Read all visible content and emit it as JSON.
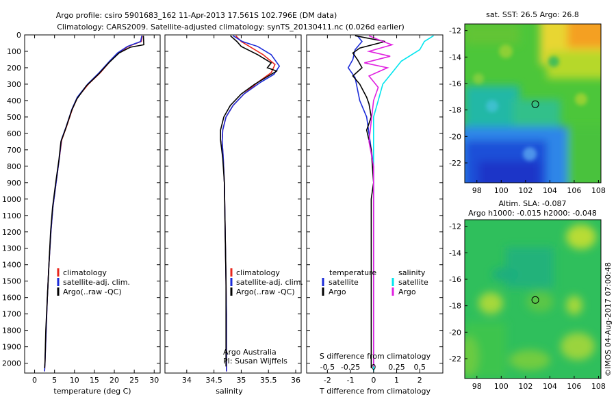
{
  "header": {
    "title_line1": "Argo profile: csiro 5901683_162 11-Apr-2013 17.561S 102.796E (DM data)",
    "title_line2": "Climatology: CARS2009. Satellite-adjusted climatology: synTS_20130411.nc (0.026d earlier)"
  },
  "colors": {
    "climatology": "#e8251b",
    "satellite": "#1b2bd8",
    "argo": "#000000",
    "salinity_satellite": "#00e5ee",
    "salinity_argo": "#e020e0"
  },
  "credit": "©IMOS 04-Aug-2017 07:00:48",
  "chart_data": [
    {
      "type": "line",
      "xlabel": "temperature (deg C)",
      "ylabel": "",
      "xlim": [
        -2.5,
        31.5
      ],
      "ylim": [
        2060,
        0
      ],
      "x_ticks": [
        "0",
        "5",
        "10",
        "15",
        "20",
        "25",
        "30"
      ],
      "y_ticks": [
        "0",
        "100",
        "200",
        "300",
        "400",
        "500",
        "600",
        "700",
        "800",
        "900",
        "1000",
        "1100",
        "1200",
        "1300",
        "1400",
        "1500",
        "1600",
        "1700",
        "1800",
        "1900",
        "2000"
      ],
      "legend": [
        "climatology",
        "satellite-adj. clim.",
        "Argo(..raw -QC)"
      ],
      "series": [
        {
          "name": "climatology",
          "values": [
            [
              27.0,
              5
            ],
            [
              26.8,
              40
            ],
            [
              23.5,
              70
            ],
            [
              21.0,
              110
            ],
            [
              19.0,
              160
            ],
            [
              16.5,
              230
            ],
            [
              13.5,
              300
            ],
            [
              10.8,
              380
            ],
            [
              9.5,
              450
            ],
            [
              8.0,
              560
            ],
            [
              6.8,
              640
            ],
            [
              6.2,
              750
            ],
            [
              5.4,
              900
            ],
            [
              4.6,
              1050
            ],
            [
              4.1,
              1200
            ],
            [
              3.6,
              1400
            ],
            [
              3.2,
              1600
            ],
            [
              2.9,
              1800
            ],
            [
              2.6,
              2000
            ],
            [
              2.5,
              2050
            ]
          ]
        },
        {
          "name": "satellite-adj. clim.",
          "values": [
            [
              26.9,
              5
            ],
            [
              26.6,
              40
            ],
            [
              23.3,
              70
            ],
            [
              20.8,
              110
            ],
            [
              18.8,
              160
            ],
            [
              16.2,
              230
            ],
            [
              13.3,
              300
            ],
            [
              10.7,
              380
            ],
            [
              9.4,
              450
            ],
            [
              7.9,
              560
            ],
            [
              6.7,
              640
            ],
            [
              6.2,
              750
            ],
            [
              5.4,
              900
            ],
            [
              4.6,
              1050
            ],
            [
              4.1,
              1200
            ],
            [
              3.6,
              1400
            ],
            [
              3.2,
              1600
            ],
            [
              2.9,
              1800
            ],
            [
              2.6,
              2000
            ],
            [
              2.5,
              2050
            ]
          ]
        },
        {
          "name": "Argo(..raw -QC)",
          "values": [
            [
              27.3,
              5
            ],
            [
              27.4,
              60
            ],
            [
              24.0,
              75
            ],
            [
              21.2,
              110
            ],
            [
              18.6,
              170
            ],
            [
              16.0,
              240
            ],
            [
              13.0,
              310
            ],
            [
              10.6,
              390
            ],
            [
              9.3,
              460
            ],
            [
              7.8,
              570
            ],
            [
              6.6,
              650
            ],
            [
              6.1,
              760
            ],
            [
              5.3,
              900
            ],
            [
              4.5,
              1050
            ],
            [
              4.0,
              1200
            ],
            [
              3.6,
              1400
            ],
            [
              3.2,
              1600
            ],
            [
              2.8,
              1800
            ],
            [
              2.6,
              2000
            ],
            [
              2.5,
              2030
            ]
          ]
        }
      ]
    },
    {
      "type": "line",
      "xlabel": "salinity",
      "ylabel": "",
      "xlim": [
        33.6,
        36.1
      ],
      "ylim": [
        2060,
        0
      ],
      "x_ticks": [
        "34",
        "34.5",
        "35",
        "35.5",
        "36"
      ],
      "legend": [
        "climatology",
        "satellite-adj. clim.",
        "Argo(..raw -QC)"
      ],
      "annotation": [
        "Argo Australia",
        "PI: Susan Wijffels"
      ],
      "series": [
        {
          "name": "climatology",
          "values": [
            [
              34.9,
              5
            ],
            [
              35.0,
              40
            ],
            [
              35.15,
              70
            ],
            [
              35.4,
              120
            ],
            [
              35.62,
              180
            ],
            [
              35.55,
              230
            ],
            [
              35.3,
              290
            ],
            [
              35.05,
              360
            ],
            [
              34.85,
              430
            ],
            [
              34.72,
              500
            ],
            [
              34.66,
              580
            ],
            [
              34.65,
              650
            ],
            [
              34.67,
              750
            ],
            [
              34.69,
              900
            ],
            [
              34.7,
              1100
            ],
            [
              34.71,
              1300
            ],
            [
              34.72,
              1500
            ],
            [
              34.73,
              1700
            ],
            [
              34.73,
              1900
            ],
            [
              34.73,
              2050
            ]
          ]
        },
        {
          "name": "satellite-adj. clim.",
          "values": [
            [
              34.85,
              5
            ],
            [
              35.02,
              40
            ],
            [
              35.3,
              70
            ],
            [
              35.55,
              120
            ],
            [
              35.7,
              190
            ],
            [
              35.6,
              240
            ],
            [
              35.35,
              290
            ],
            [
              35.05,
              360
            ],
            [
              34.85,
              430
            ],
            [
              34.72,
              500
            ],
            [
              34.66,
              580
            ],
            [
              34.65,
              650
            ],
            [
              34.67,
              750
            ],
            [
              34.69,
              900
            ],
            [
              34.7,
              1100
            ],
            [
              34.71,
              1300
            ],
            [
              34.72,
              1500
            ],
            [
              34.73,
              1700
            ],
            [
              34.73,
              1900
            ],
            [
              34.73,
              2050
            ]
          ]
        },
        {
          "name": "Argo(..raw -QC)",
          "values": [
            [
              34.8,
              5
            ],
            [
              34.92,
              40
            ],
            [
              35.0,
              70
            ],
            [
              35.3,
              120
            ],
            [
              35.55,
              170
            ],
            [
              35.48,
              200
            ],
            [
              35.65,
              220
            ],
            [
              35.5,
              250
            ],
            [
              35.25,
              300
            ],
            [
              35.0,
              360
            ],
            [
              34.8,
              430
            ],
            [
              34.68,
              500
            ],
            [
              34.62,
              580
            ],
            [
              34.62,
              640
            ],
            [
              34.66,
              750
            ],
            [
              34.69,
              900
            ],
            [
              34.7,
              1100
            ],
            [
              34.71,
              1300
            ],
            [
              34.72,
              1500
            ],
            [
              34.72,
              1700
            ],
            [
              34.72,
              1900
            ],
            [
              34.72,
              2020
            ]
          ]
        }
      ]
    },
    {
      "type": "line",
      "xlabel": "T difference from climatology",
      "x2label": "S difference from climatology",
      "xlim": [
        -2.9,
        3.0
      ],
      "x2lim": [
        -0.725,
        0.75
      ],
      "ylim": [
        2060,
        0
      ],
      "x_ticks": [
        "-2",
        "-1",
        "0",
        "1",
        "2"
      ],
      "x2_ticks": [
        "-0.5",
        "-0.25",
        "0",
        "0.25",
        "0.5"
      ],
      "legend_titles": [
        "temperature",
        "salinity"
      ],
      "legend": [
        "satellite",
        "Argo",
        "satellite",
        "Argo"
      ],
      "series": [
        {
          "name": "satellite",
          "quantity": "temperature",
          "values": [
            [
              -0.7,
              5
            ],
            [
              -0.5,
              40
            ],
            [
              -0.8,
              90
            ],
            [
              -0.9,
              150
            ],
            [
              -1.1,
              200
            ],
            [
              -0.8,
              260
            ],
            [
              -0.7,
              330
            ],
            [
              -0.6,
              400
            ],
            [
              -0.3,
              500
            ],
            [
              -0.2,
              600
            ],
            [
              0.0,
              800
            ],
            [
              0.0,
              2050
            ]
          ]
        },
        {
          "name": "Argo",
          "quantity": "temperature",
          "values": [
            [
              -0.8,
              5
            ],
            [
              0.5,
              40
            ],
            [
              -0.6,
              80
            ],
            [
              -0.9,
              110
            ],
            [
              -0.7,
              150
            ],
            [
              -0.5,
              200
            ],
            [
              -0.9,
              250
            ],
            [
              -0.6,
              300
            ],
            [
              -0.3,
              380
            ],
            [
              -0.2,
              420
            ],
            [
              -0.1,
              500
            ],
            [
              -0.3,
              580
            ],
            [
              -0.1,
              700
            ],
            [
              0.0,
              900
            ],
            [
              -0.1,
              1000
            ],
            [
              -0.1,
              1100
            ],
            [
              -0.1,
              1300
            ],
            [
              -0.1,
              1600
            ],
            [
              -0.1,
              2030
            ]
          ]
        },
        {
          "name": "satellite",
          "quantity": "salinity",
          "values": [
            [
              0.65,
              5
            ],
            [
              0.55,
              40
            ],
            [
              0.5,
              90
            ],
            [
              0.3,
              160
            ],
            [
              0.2,
              230
            ],
            [
              0.1,
              300
            ],
            [
              0.05,
              400
            ],
            [
              0.0,
              500
            ],
            [
              0.0,
              2050
            ]
          ]
        },
        {
          "name": "Argo",
          "quantity": "salinity",
          "values": [
            [
              -0.05,
              5
            ],
            [
              0.1,
              40
            ],
            [
              0.2,
              60
            ],
            [
              -0.05,
              100
            ],
            [
              0.18,
              130
            ],
            [
              -0.1,
              170
            ],
            [
              0.15,
              200
            ],
            [
              -0.05,
              250
            ],
            [
              0.05,
              320
            ],
            [
              0.0,
              400
            ],
            [
              -0.02,
              500
            ],
            [
              -0.05,
              650
            ],
            [
              0.0,
              800
            ],
            [
              0.0,
              1000
            ],
            [
              0.0,
              2020
            ]
          ]
        }
      ]
    },
    {
      "type": "heatmap",
      "title": "sat. SST: 26.5 Argo: 26.8",
      "xlim": [
        97,
        108.2
      ],
      "ylim": [
        -23.5,
        -11.5
      ],
      "x_ticks": [
        "98",
        "100",
        "102",
        "104",
        "106",
        "108"
      ],
      "y_ticks": [
        "-12",
        "-14",
        "-16",
        "-18",
        "-20",
        "-22"
      ],
      "marker": [
        102.8,
        -17.56
      ]
    },
    {
      "type": "heatmap",
      "title_line1": "Altim. SLA: -0.087",
      "title_line2": "Argo h1000: -0.015 h2000: -0.048",
      "xlim": [
        97,
        108.2
      ],
      "ylim": [
        -23.5,
        -11.5
      ],
      "x_ticks": [
        "98",
        "100",
        "102",
        "104",
        "106",
        "108"
      ],
      "y_ticks": [
        "-12",
        "-14",
        "-16",
        "-18",
        "-20",
        "-22"
      ],
      "marker": [
        102.8,
        -17.56
      ]
    }
  ]
}
